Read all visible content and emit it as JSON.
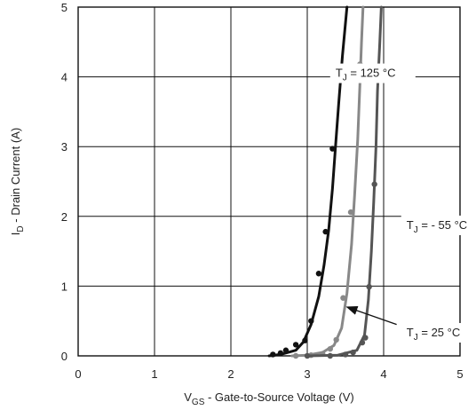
{
  "chart_data": {
    "type": "line",
    "xlabel": {
      "main": "V",
      "sub": "GS",
      "rest": " - Gate-to-Source Voltage (V)"
    },
    "ylabel": {
      "main": "I",
      "sub": "D",
      "rest": " - Drain Current  (A)"
    },
    "xlim": [
      0,
      5
    ],
    "ylim": [
      0,
      5
    ],
    "x_ticks": [
      "0",
      "1",
      "2",
      "3",
      "4",
      "5"
    ],
    "y_ticks": [
      "0",
      "1",
      "2",
      "3",
      "4",
      "5"
    ],
    "grid": true,
    "series": [
      {
        "name": "T_J = 125 °C",
        "label_main": "T",
        "label_sub": "J",
        "label_rest": " = 125 °C",
        "color": "#111111",
        "line": [
          [
            2.5,
            0.0
          ],
          [
            2.65,
            0.02
          ],
          [
            2.85,
            0.08
          ],
          [
            2.95,
            0.2
          ],
          [
            3.05,
            0.45
          ],
          [
            3.15,
            0.85
          ],
          [
            3.22,
            1.3
          ],
          [
            3.28,
            1.8
          ],
          [
            3.33,
            2.4
          ],
          [
            3.37,
            3.0
          ],
          [
            3.41,
            3.6
          ],
          [
            3.46,
            4.3
          ],
          [
            3.52,
            5.0
          ]
        ],
        "points": [
          [
            2.55,
            0.02
          ],
          [
            2.65,
            0.04
          ],
          [
            2.72,
            0.08
          ],
          [
            2.85,
            0.16
          ],
          [
            2.97,
            0.22
          ],
          [
            3.05,
            0.5
          ],
          [
            3.15,
            1.18
          ],
          [
            3.24,
            1.78
          ],
          [
            3.33,
            2.97
          ]
        ]
      },
      {
        "name": "T_J = - 55 °C",
        "label_main": "T",
        "label_sub": "J",
        "label_rest": " = - 55 °C",
        "color": "#888888",
        "line": [
          [
            2.8,
            0.0
          ],
          [
            3.0,
            0.01
          ],
          [
            3.2,
            0.05
          ],
          [
            3.35,
            0.15
          ],
          [
            3.45,
            0.4
          ],
          [
            3.52,
            0.9
          ],
          [
            3.58,
            1.6
          ],
          [
            3.62,
            2.3
          ],
          [
            3.66,
            3.1
          ],
          [
            3.69,
            3.9
          ],
          [
            3.71,
            4.5
          ],
          [
            3.73,
            5.0
          ]
        ],
        "points": [
          [
            2.85,
            0.0
          ],
          [
            3.05,
            0.01
          ],
          [
            3.2,
            0.03
          ],
          [
            3.3,
            0.1
          ],
          [
            3.38,
            0.23
          ],
          [
            3.47,
            0.83
          ],
          [
            3.57,
            2.06
          ],
          [
            3.69,
            4.18
          ]
        ]
      },
      {
        "name": "T_J = 25 °C",
        "label_main": "T",
        "label_sub": "J",
        "label_rest": " = 25 °C",
        "color": "#555555",
        "line": [
          [
            3.0,
            0.0
          ],
          [
            3.4,
            0.01
          ],
          [
            3.65,
            0.08
          ],
          [
            3.75,
            0.3
          ],
          [
            3.8,
            0.8
          ],
          [
            3.84,
            1.5
          ],
          [
            3.87,
            2.2
          ],
          [
            3.9,
            3.0
          ],
          [
            3.92,
            3.8
          ],
          [
            3.95,
            4.5
          ],
          [
            3.97,
            5.0
          ]
        ],
        "points": [
          [
            3.0,
            0.0
          ],
          [
            3.3,
            0.0
          ],
          [
            3.5,
            0.02
          ],
          [
            3.6,
            0.05
          ],
          [
            3.72,
            0.19
          ],
          [
            3.76,
            0.26
          ],
          [
            3.81,
            0.99
          ],
          [
            3.88,
            2.46
          ]
        ]
      }
    ],
    "annotations": [
      {
        "series": 0,
        "text_anchor_data": [
          3.37,
          4.0
        ],
        "arrow": false
      },
      {
        "series": 1,
        "text_anchor_data": [
          4.3,
          1.82
        ],
        "arrow": false
      },
      {
        "series": 2,
        "text_anchor_data": [
          4.3,
          0.28
        ],
        "arrow_from_data": [
          4.17,
          0.45
        ],
        "arrow_to_data": [
          3.52,
          0.7
        ],
        "arrow": true
      }
    ]
  }
}
